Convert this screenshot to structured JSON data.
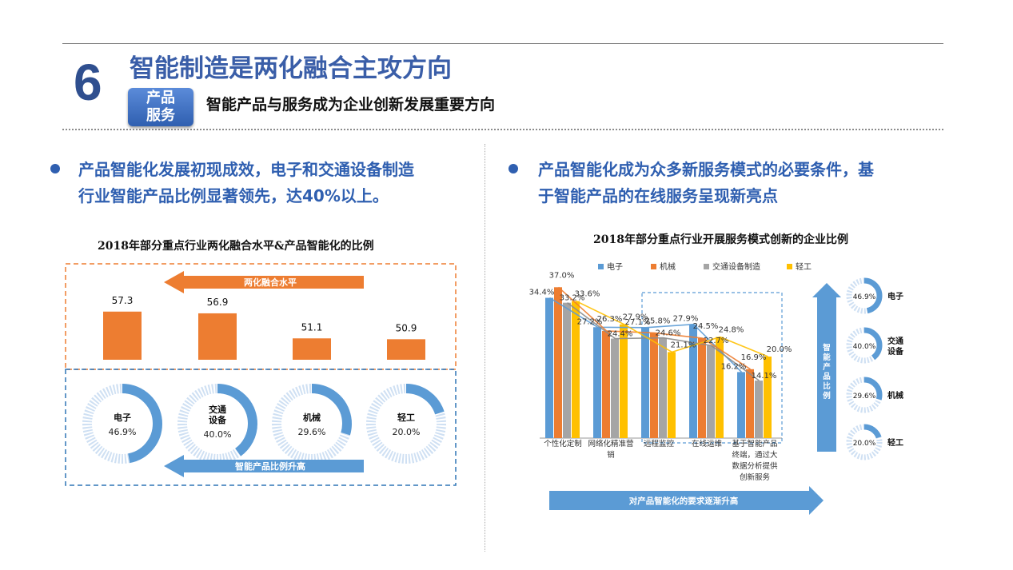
{
  "header": {
    "number": "6",
    "title": "智能制造是两化融合主攻方向",
    "badge": "产品\n服务",
    "subtitle": "智能产品与服务成为企业创新发展重要方向"
  },
  "left": {
    "bullet": "产品智能化发展初现成效，电子和交通设备制造\n行业智能产品比例显著领先，达40%以上。"
  },
  "right": {
    "bullet": "产品智能化成为众多新服务模式的必要条件，基\n于智能产品的在线服务呈现新亮点"
  },
  "colors": {
    "title_blue": "#3a5ea8",
    "orange": "#ed7d31",
    "blue": "#5b9bd5",
    "gray": "#a5a5a5",
    "yellow": "#ffc000",
    "dashed_orange": "#ed7d31",
    "dashed_blue": "#2e75b6"
  },
  "chart_data": [
    {
      "type": "bar",
      "title": "2018年部分重点行业两化融合水平&产品智能化的比例",
      "arrow_top": "两化融合水平",
      "arrow_bottom": "智能产品比例升高",
      "categories": [
        "电子",
        "交通\n设备",
        "机械",
        "轻工"
      ],
      "values": [
        57.3,
        56.9,
        51.1,
        50.9
      ],
      "ratio_labels": [
        "46.9%",
        "40.0%",
        "29.6%",
        "20.0%"
      ],
      "ratios": [
        46.9,
        40.0,
        29.6,
        20.0
      ]
    },
    {
      "type": "bar",
      "title": "2018年部分重点行业开展服务模式创新的企业比例",
      "categories": [
        "个性化定制",
        "网络化精准营销",
        "远程监控",
        "在线运维",
        "基于智能产品终端，通过大数据分析提供创新服务"
      ],
      "category_lines": [
        [
          "个性化定制"
        ],
        [
          "网络化精准营",
          "销"
        ],
        [
          "远程监控"
        ],
        [
          "在线运维"
        ],
        [
          "基于智能产品",
          "终端，通过大",
          "数据分析提供",
          "创新服务"
        ]
      ],
      "series": [
        {
          "name": "电子",
          "values": [
            34.4,
            27.2,
            27.1,
            27.9,
            16.2
          ]
        },
        {
          "name": "机械",
          "values": [
            37.0,
            26.3,
            25.8,
            24.5,
            16.9
          ]
        },
        {
          "name": "交通设备制造",
          "values": [
            33.2,
            24.4,
            24.6,
            22.7,
            14.1
          ]
        },
        {
          "name": "轻工",
          "values": [
            33.6,
            27.9,
            21.1,
            24.8,
            20.0
          ]
        }
      ],
      "ylim": [
        0,
        40
      ],
      "bottom_arrow": "对产品智能化的要求逐渐升高",
      "side_arrow": "智\n能\n产\n品\n比\n例",
      "side_labels": [
        "电子",
        "交通\n设备",
        "机械",
        "轻工"
      ],
      "side_ratios": [
        46.9,
        40.0,
        29.6,
        20.0
      ],
      "side_ratio_labels": [
        "46.9%",
        "40.0%",
        "29.6%",
        "20.0%"
      ]
    }
  ]
}
